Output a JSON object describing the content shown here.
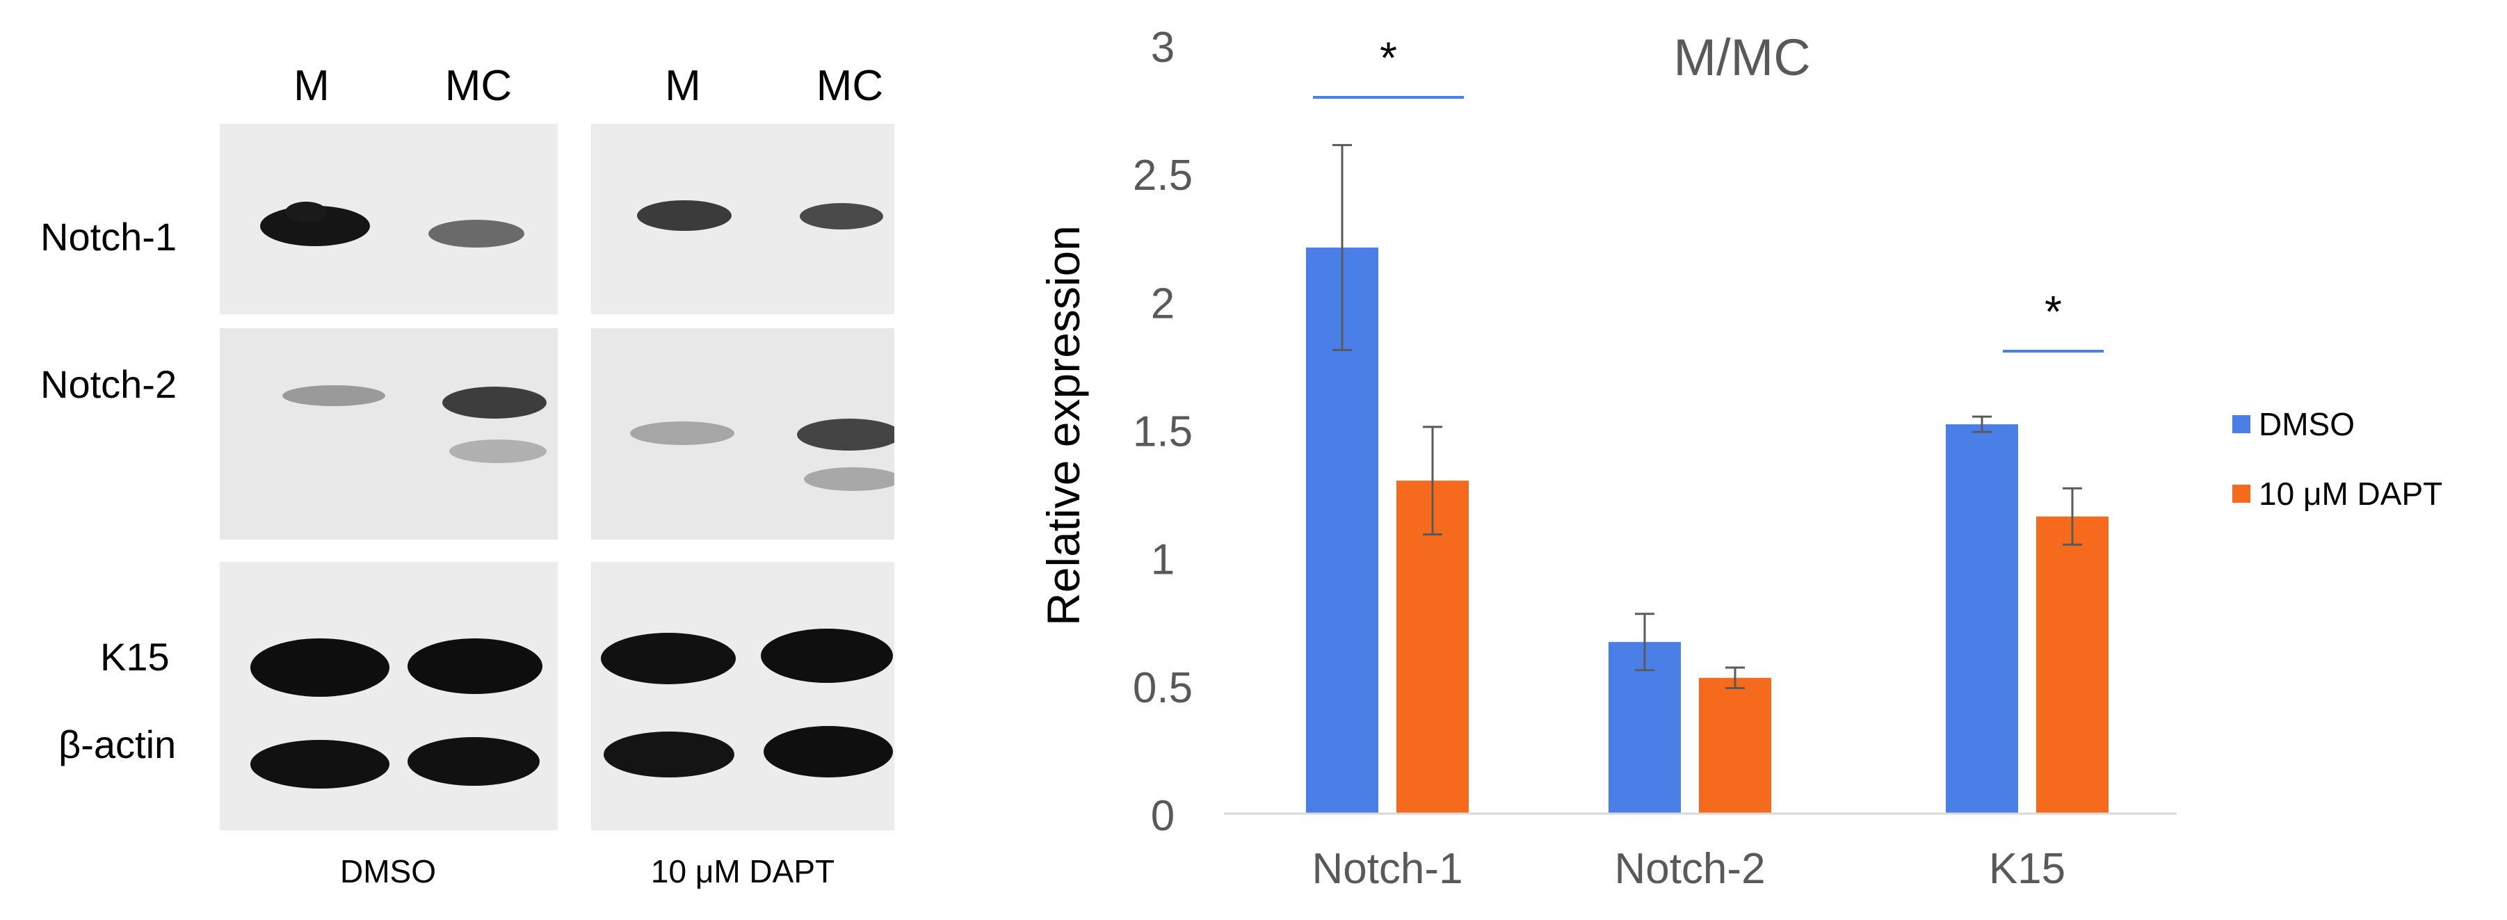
{
  "blot": {
    "lane_labels": [
      "M",
      "MC",
      "M",
      "MC"
    ],
    "row_labels": [
      "Notch-1",
      "Notch-2",
      "K15",
      "β-actin"
    ],
    "condition_labels": [
      "DMSO",
      "10 μM DAPT"
    ]
  },
  "chart_data": {
    "type": "bar",
    "title": "M/MC",
    "xlabel": "",
    "ylabel": "Relative expression",
    "categories": [
      "Notch-1",
      "Notch-2",
      "K15"
    ],
    "series": [
      {
        "name": "DMSO",
        "color": "#4a7fe8",
        "values": [
          2.21,
          0.67,
          1.52
        ],
        "errors": [
          0.4,
          0.11,
          0.03
        ]
      },
      {
        "name": "10 μM DAPT",
        "color": "#f56a1c",
        "values": [
          1.3,
          0.53,
          1.16
        ],
        "errors": [
          0.21,
          0.04,
          0.11
        ]
      }
    ],
    "ylim": [
      0,
      3
    ],
    "yticks": [
      "0",
      "0.5",
      "1",
      "1.5",
      "2",
      "2.5",
      "3"
    ],
    "significance": [
      {
        "category": "Notch-1",
        "label": "*"
      },
      {
        "category": "K15",
        "label": "*"
      }
    ],
    "grid": false,
    "legend_position": "right"
  }
}
